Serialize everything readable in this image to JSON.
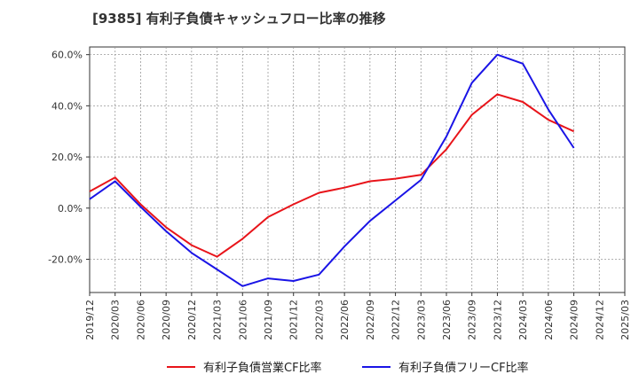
{
  "chart_data": {
    "type": "line",
    "title": "[9385]  有利子負債キャッシュフロー比率の推移",
    "xlabel": "",
    "ylabel": "",
    "x_ticks": [
      "2019/12",
      "2020/03",
      "2020/06",
      "2020/09",
      "2020/12",
      "2021/03",
      "2021/06",
      "2021/09",
      "2021/12",
      "2022/03",
      "2022/06",
      "2022/09",
      "2022/12",
      "2023/03",
      "2023/06",
      "2023/09",
      "2023/12",
      "2024/03",
      "2024/06",
      "2024/09",
      "2024/12",
      "2025/03"
    ],
    "y_ticks": [
      "60.0%",
      "40.0%",
      "20.0%",
      "0.0%",
      "-20.0%"
    ],
    "y_tick_values": [
      60,
      40,
      20,
      0,
      -20
    ],
    "ylim": [
      -33,
      63
    ],
    "grid": true,
    "legend_position": "bottom",
    "colors": {
      "series1": "#e8141a",
      "series2": "#1a14e6",
      "grid": "#999999",
      "axis": "#333333"
    },
    "series": [
      {
        "name": "有利子負債営業CF比率",
        "color": "#e8141a",
        "points": [
          [
            "2019/12",
            6.5
          ],
          [
            "2020/03",
            12.0
          ],
          [
            "2020/06",
            1.5
          ],
          [
            "2020/09",
            -7.5
          ],
          [
            "2020/12",
            -14.5
          ],
          [
            "2021/03",
            -19.0
          ],
          [
            "2021/06",
            -12.0
          ],
          [
            "2021/09",
            -3.5
          ],
          [
            "2021/12",
            1.5
          ],
          [
            "2022/03",
            6.0
          ],
          [
            "2022/06",
            8.0
          ],
          [
            "2022/09",
            10.5
          ],
          [
            "2022/12",
            11.5
          ],
          [
            "2023/03",
            13.0
          ],
          [
            "2023/06",
            23.0
          ],
          [
            "2023/09",
            36.5
          ],
          [
            "2023/12",
            44.5
          ],
          [
            "2024/03",
            41.5
          ],
          [
            "2024/06",
            34.5
          ],
          [
            "2024/09",
            30.0
          ]
        ]
      },
      {
        "name": "有利子負債フリーCF比率",
        "color": "#1a14e6",
        "points": [
          [
            "2019/12",
            3.5
          ],
          [
            "2020/03",
            10.5
          ],
          [
            "2020/06",
            0.5
          ],
          [
            "2020/09",
            -9.0
          ],
          [
            "2020/12",
            -17.5
          ],
          [
            "2021/03",
            -24.0
          ],
          [
            "2021/06",
            -30.5
          ],
          [
            "2021/09",
            -27.5
          ],
          [
            "2021/12",
            -28.5
          ],
          [
            "2022/03",
            -26.0
          ],
          [
            "2022/06",
            -15.0
          ],
          [
            "2022/09",
            -5.0
          ],
          [
            "2022/12",
            3.0
          ],
          [
            "2023/03",
            11.0
          ],
          [
            "2023/06",
            28.0
          ],
          [
            "2023/09",
            49.0
          ],
          [
            "2023/12",
            60.0
          ],
          [
            "2024/03",
            56.5
          ],
          [
            "2024/06",
            38.5
          ],
          [
            "2024/09",
            23.5
          ]
        ]
      }
    ]
  }
}
